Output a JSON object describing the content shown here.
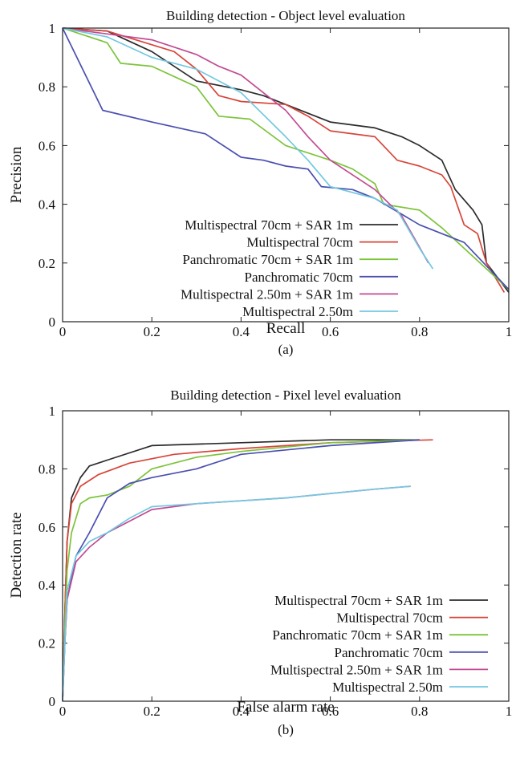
{
  "colors": {
    "Multispectral 70cm + SAR 1m": "#2b2b2b",
    "Multispectral 70cm": "#d8453a",
    "Panchromatic 70cm + SAR 1m": "#7cc43a",
    "Panchromatic 70cm": "#4a4fb0",
    "Multispectral 2.50m + SAR 1m": "#c24a93",
    "Multispectral 2.50m": "#72c8e0"
  },
  "chart_data": [
    {
      "type": "line",
      "title": "Building detection - Object level evaluation",
      "xlabel": "Recall",
      "ylabel": "Precision",
      "caption": "(a)",
      "xlim": [
        0,
        1
      ],
      "ylim": [
        0,
        1
      ],
      "xticks": [
        "0",
        "0.2",
        "0.4",
        "0.6",
        "0.8",
        "1"
      ],
      "yticks": [
        "0",
        "0.2",
        "0.4",
        "0.6",
        "0.8",
        "1"
      ],
      "grid": false,
      "legend_position": "bottom-left",
      "series": [
        {
          "name": "Multispectral 70cm + SAR 1m",
          "points": [
            [
              0,
              1
            ],
            [
              0.1,
              0.99
            ],
            [
              0.2,
              0.92
            ],
            [
              0.3,
              0.82
            ],
            [
              0.4,
              0.79
            ],
            [
              0.45,
              0.77
            ],
            [
              0.5,
              0.74
            ],
            [
              0.6,
              0.68
            ],
            [
              0.7,
              0.66
            ],
            [
              0.76,
              0.63
            ],
            [
              0.8,
              0.6
            ],
            [
              0.85,
              0.55
            ],
            [
              0.88,
              0.45
            ],
            [
              0.92,
              0.38
            ],
            [
              0.94,
              0.33
            ],
            [
              0.95,
              0.2
            ],
            [
              1,
              0.1
            ]
          ]
        },
        {
          "name": "Multispectral 70cm",
          "points": [
            [
              0,
              1
            ],
            [
              0.1,
              0.99
            ],
            [
              0.25,
              0.92
            ],
            [
              0.3,
              0.86
            ],
            [
              0.35,
              0.77
            ],
            [
              0.4,
              0.75
            ],
            [
              0.5,
              0.74
            ],
            [
              0.55,
              0.7
            ],
            [
              0.6,
              0.65
            ],
            [
              0.7,
              0.63
            ],
            [
              0.75,
              0.55
            ],
            [
              0.8,
              0.53
            ],
            [
              0.85,
              0.5
            ],
            [
              0.87,
              0.46
            ],
            [
              0.9,
              0.33
            ],
            [
              0.93,
              0.3
            ],
            [
              0.95,
              0.2
            ],
            [
              0.99,
              0.1
            ]
          ]
        },
        {
          "name": "Panchromatic 70cm + SAR 1m",
          "points": [
            [
              0,
              1
            ],
            [
              0.1,
              0.95
            ],
            [
              0.13,
              0.88
            ],
            [
              0.2,
              0.87
            ],
            [
              0.3,
              0.8
            ],
            [
              0.35,
              0.7
            ],
            [
              0.42,
              0.69
            ],
            [
              0.5,
              0.6
            ],
            [
              0.6,
              0.55
            ],
            [
              0.65,
              0.52
            ],
            [
              0.7,
              0.47
            ],
            [
              0.72,
              0.4
            ],
            [
              0.8,
              0.38
            ],
            [
              0.85,
              0.32
            ],
            [
              0.9,
              0.25
            ],
            [
              1,
              0.11
            ]
          ]
        },
        {
          "name": "Panchromatic 70cm",
          "points": [
            [
              0,
              1
            ],
            [
              0.09,
              0.72
            ],
            [
              0.2,
              0.68
            ],
            [
              0.32,
              0.64
            ],
            [
              0.4,
              0.56
            ],
            [
              0.45,
              0.55
            ],
            [
              0.5,
              0.53
            ],
            [
              0.55,
              0.52
            ],
            [
              0.58,
              0.46
            ],
            [
              0.65,
              0.45
            ],
            [
              0.7,
              0.42
            ],
            [
              0.8,
              0.33
            ],
            [
              0.9,
              0.27
            ],
            [
              1,
              0.11
            ]
          ]
        },
        {
          "name": "Multispectral 2.50m + SAR 1m",
          "points": [
            [
              0,
              1
            ],
            [
              0.2,
              0.96
            ],
            [
              0.3,
              0.91
            ],
            [
              0.35,
              0.87
            ],
            [
              0.4,
              0.84
            ],
            [
              0.5,
              0.72
            ],
            [
              0.55,
              0.63
            ],
            [
              0.6,
              0.55
            ],
            [
              0.7,
              0.45
            ],
            [
              0.76,
              0.36
            ],
            [
              0.82,
              0.2
            ]
          ]
        },
        {
          "name": "Multispectral 2.50m",
          "points": [
            [
              0,
              1
            ],
            [
              0.1,
              0.97
            ],
            [
              0.2,
              0.9
            ],
            [
              0.3,
              0.86
            ],
            [
              0.4,
              0.78
            ],
            [
              0.5,
              0.63
            ],
            [
              0.55,
              0.55
            ],
            [
              0.6,
              0.46
            ],
            [
              0.7,
              0.42
            ],
            [
              0.75,
              0.38
            ],
            [
              0.8,
              0.25
            ],
            [
              0.83,
              0.18
            ]
          ]
        }
      ]
    },
    {
      "type": "line",
      "title": "Building detection - Pixel level evaluation",
      "xlabel": "False alarm rate",
      "ylabel": "Detection rate",
      "caption": "(b)",
      "xlim": [
        0,
        1
      ],
      "ylim": [
        0,
        1
      ],
      "xticks": [
        "0",
        "0.2",
        "0.4",
        "0.6",
        "0.8",
        "1"
      ],
      "yticks": [
        "0",
        "0.2",
        "0.4",
        "0.6",
        "0.8",
        "1"
      ],
      "grid": false,
      "legend_position": "bottom-right",
      "series": [
        {
          "name": "Multispectral 70cm + SAR 1m",
          "points": [
            [
              0,
              0
            ],
            [
              0.005,
              0.3
            ],
            [
              0.01,
              0.55
            ],
            [
              0.02,
              0.7
            ],
            [
              0.04,
              0.77
            ],
            [
              0.06,
              0.81
            ],
            [
              0.1,
              0.83
            ],
            [
              0.2,
              0.88
            ],
            [
              0.4,
              0.89
            ],
            [
              0.6,
              0.9
            ],
            [
              0.8,
              0.9
            ]
          ]
        },
        {
          "name": "Multispectral 70cm",
          "points": [
            [
              0,
              0
            ],
            [
              0.005,
              0.3
            ],
            [
              0.01,
              0.55
            ],
            [
              0.02,
              0.68
            ],
            [
              0.04,
              0.74
            ],
            [
              0.08,
              0.78
            ],
            [
              0.15,
              0.82
            ],
            [
              0.25,
              0.85
            ],
            [
              0.4,
              0.87
            ],
            [
              0.6,
              0.89
            ],
            [
              0.83,
              0.9
            ]
          ]
        },
        {
          "name": "Panchromatic 70cm + SAR 1m",
          "points": [
            [
              0,
              0
            ],
            [
              0.005,
              0.25
            ],
            [
              0.01,
              0.45
            ],
            [
              0.02,
              0.58
            ],
            [
              0.04,
              0.68
            ],
            [
              0.06,
              0.7
            ],
            [
              0.1,
              0.71
            ],
            [
              0.15,
              0.74
            ],
            [
              0.2,
              0.8
            ],
            [
              0.3,
              0.84
            ],
            [
              0.4,
              0.86
            ],
            [
              0.6,
              0.89
            ],
            [
              0.8,
              0.9
            ]
          ]
        },
        {
          "name": "Panchromatic 70cm",
          "points": [
            [
              0,
              0
            ],
            [
              0.005,
              0.2
            ],
            [
              0.01,
              0.35
            ],
            [
              0.03,
              0.5
            ],
            [
              0.06,
              0.58
            ],
            [
              0.1,
              0.7
            ],
            [
              0.15,
              0.75
            ],
            [
              0.2,
              0.77
            ],
            [
              0.3,
              0.8
            ],
            [
              0.4,
              0.85
            ],
            [
              0.6,
              0.88
            ],
            [
              0.8,
              0.9
            ]
          ]
        },
        {
          "name": "Multispectral 2.50m + SAR 1m",
          "points": [
            [
              0,
              0
            ],
            [
              0.005,
              0.2
            ],
            [
              0.01,
              0.35
            ],
            [
              0.03,
              0.48
            ],
            [
              0.06,
              0.53
            ],
            [
              0.1,
              0.58
            ],
            [
              0.15,
              0.62
            ],
            [
              0.2,
              0.66
            ],
            [
              0.3,
              0.68
            ],
            [
              0.5,
              0.7
            ],
            [
              0.7,
              0.73
            ],
            [
              0.78,
              0.74
            ]
          ]
        },
        {
          "name": "Multispectral 2.50m",
          "points": [
            [
              0,
              0
            ],
            [
              0.005,
              0.2
            ],
            [
              0.01,
              0.38
            ],
            [
              0.03,
              0.5
            ],
            [
              0.06,
              0.55
            ],
            [
              0.1,
              0.58
            ],
            [
              0.15,
              0.63
            ],
            [
              0.2,
              0.67
            ],
            [
              0.3,
              0.68
            ],
            [
              0.5,
              0.7
            ],
            [
              0.7,
              0.73
            ],
            [
              0.78,
              0.74
            ]
          ]
        }
      ]
    }
  ]
}
